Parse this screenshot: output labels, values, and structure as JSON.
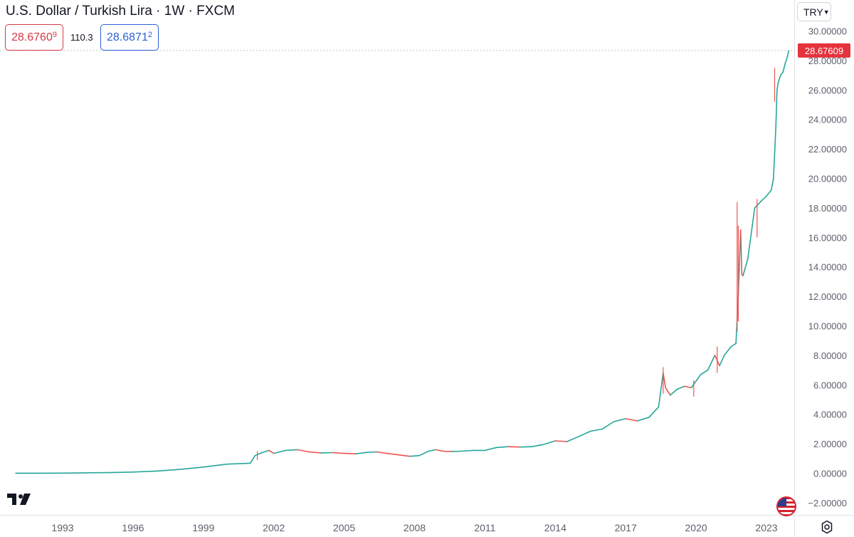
{
  "title": "U.S. Dollar / Turkish Lira · 1W · FXCM",
  "sell_price": {
    "main": "28.6760",
    "small": "9"
  },
  "spread": "110.3",
  "buy_price": {
    "main": "28.6871",
    "small": "2"
  },
  "currency_selector": {
    "value": "TRY",
    "icon": "chevron-down-icon"
  },
  "last_price_label": "28.67609",
  "icons": {
    "logo": "tradingview-logo-icon",
    "flag": "us-flag-icon",
    "settings": "settings-icon"
  },
  "colors": {
    "up": "#26a69a",
    "down": "#ef5350",
    "sell": "#d63a44",
    "buy": "#2b5fd9",
    "last_price": "#e5333d"
  },
  "chart_data": {
    "type": "line",
    "ylim": [
      -2.5,
      30.5
    ],
    "xlim": [
      1991.0,
      2024.4
    ],
    "y_ticks": [
      "30.00000",
      "28.00000",
      "26.00000",
      "24.00000",
      "22.00000",
      "20.00000",
      "18.00000",
      "16.00000",
      "14.00000",
      "12.00000",
      "10.00000",
      "8.00000",
      "6.00000",
      "4.00000",
      "2.00000",
      "0.00000",
      "−2.00000"
    ],
    "y_tick_values": [
      30,
      28,
      26,
      24,
      22,
      20,
      18,
      16,
      14,
      12,
      10,
      8,
      6,
      4,
      2,
      0,
      -2
    ],
    "x_ticks": [
      "1993",
      "1996",
      "1999",
      "2002",
      "2005",
      "2008",
      "2011",
      "2014",
      "2017",
      "2020",
      "2023"
    ],
    "x_tick_values": [
      1993,
      1996,
      1999,
      2002,
      2005,
      2008,
      2011,
      2014,
      2017,
      2020,
      2023
    ],
    "last_value": 28.67609,
    "series": [
      {
        "x": [
          1991.0,
          1992.0,
          1993.0,
          1994.0,
          1995.0,
          1996.0,
          1997.0,
          1998.0,
          1999.0,
          2000.0,
          2001.0,
          2001.2,
          2001.5,
          2001.8,
          2002.0,
          2002.5,
          2003.0,
          2003.5,
          2004.0,
          2004.5,
          2005.0,
          2005.5,
          2006.0,
          2006.4,
          2006.8,
          2007.3,
          2007.8,
          2008.2,
          2008.6,
          2008.9,
          2009.2,
          2009.6,
          2010.0,
          2010.5,
          2011.0,
          2011.5,
          2012.0,
          2012.5,
          2013.0,
          2013.5,
          2014.0,
          2014.5,
          2015.0,
          2015.5,
          2016.0,
          2016.5,
          2017.0,
          2017.5,
          2018.0,
          2018.4,
          2018.6,
          2018.7,
          2018.9,
          2019.2,
          2019.5,
          2019.8,
          2020.2,
          2020.5,
          2020.8,
          2021.0,
          2021.2,
          2021.5,
          2021.7,
          2021.8,
          2021.9,
          2021.95,
          2022.0,
          2022.2,
          2022.5,
          2022.8,
          2023.0,
          2023.2,
          2023.3,
          2023.4,
          2023.45,
          2023.5,
          2023.6,
          2023.7,
          2023.8,
          2023.9,
          2023.95
        ],
        "y": [
          0.003,
          0.006,
          0.01,
          0.03,
          0.045,
          0.08,
          0.15,
          0.26,
          0.42,
          0.62,
          0.68,
          1.2,
          1.4,
          1.55,
          1.35,
          1.55,
          1.6,
          1.45,
          1.38,
          1.4,
          1.35,
          1.32,
          1.42,
          1.45,
          1.35,
          1.25,
          1.15,
          1.2,
          1.5,
          1.6,
          1.5,
          1.48,
          1.5,
          1.55,
          1.55,
          1.75,
          1.8,
          1.78,
          1.8,
          1.95,
          2.2,
          2.15,
          2.5,
          2.85,
          3.0,
          3.5,
          3.7,
          3.55,
          3.8,
          4.5,
          6.8,
          5.8,
          5.3,
          5.7,
          5.9,
          5.8,
          6.7,
          7.0,
          8.0,
          7.3,
          8.0,
          8.6,
          8.8,
          12.0,
          16.5,
          13.5,
          13.4,
          14.5,
          18.0,
          18.5,
          18.8,
          19.2,
          20.0,
          23.5,
          26.0,
          26.5,
          27.0,
          27.2,
          27.8,
          28.3,
          28.676
        ]
      }
    ]
  }
}
